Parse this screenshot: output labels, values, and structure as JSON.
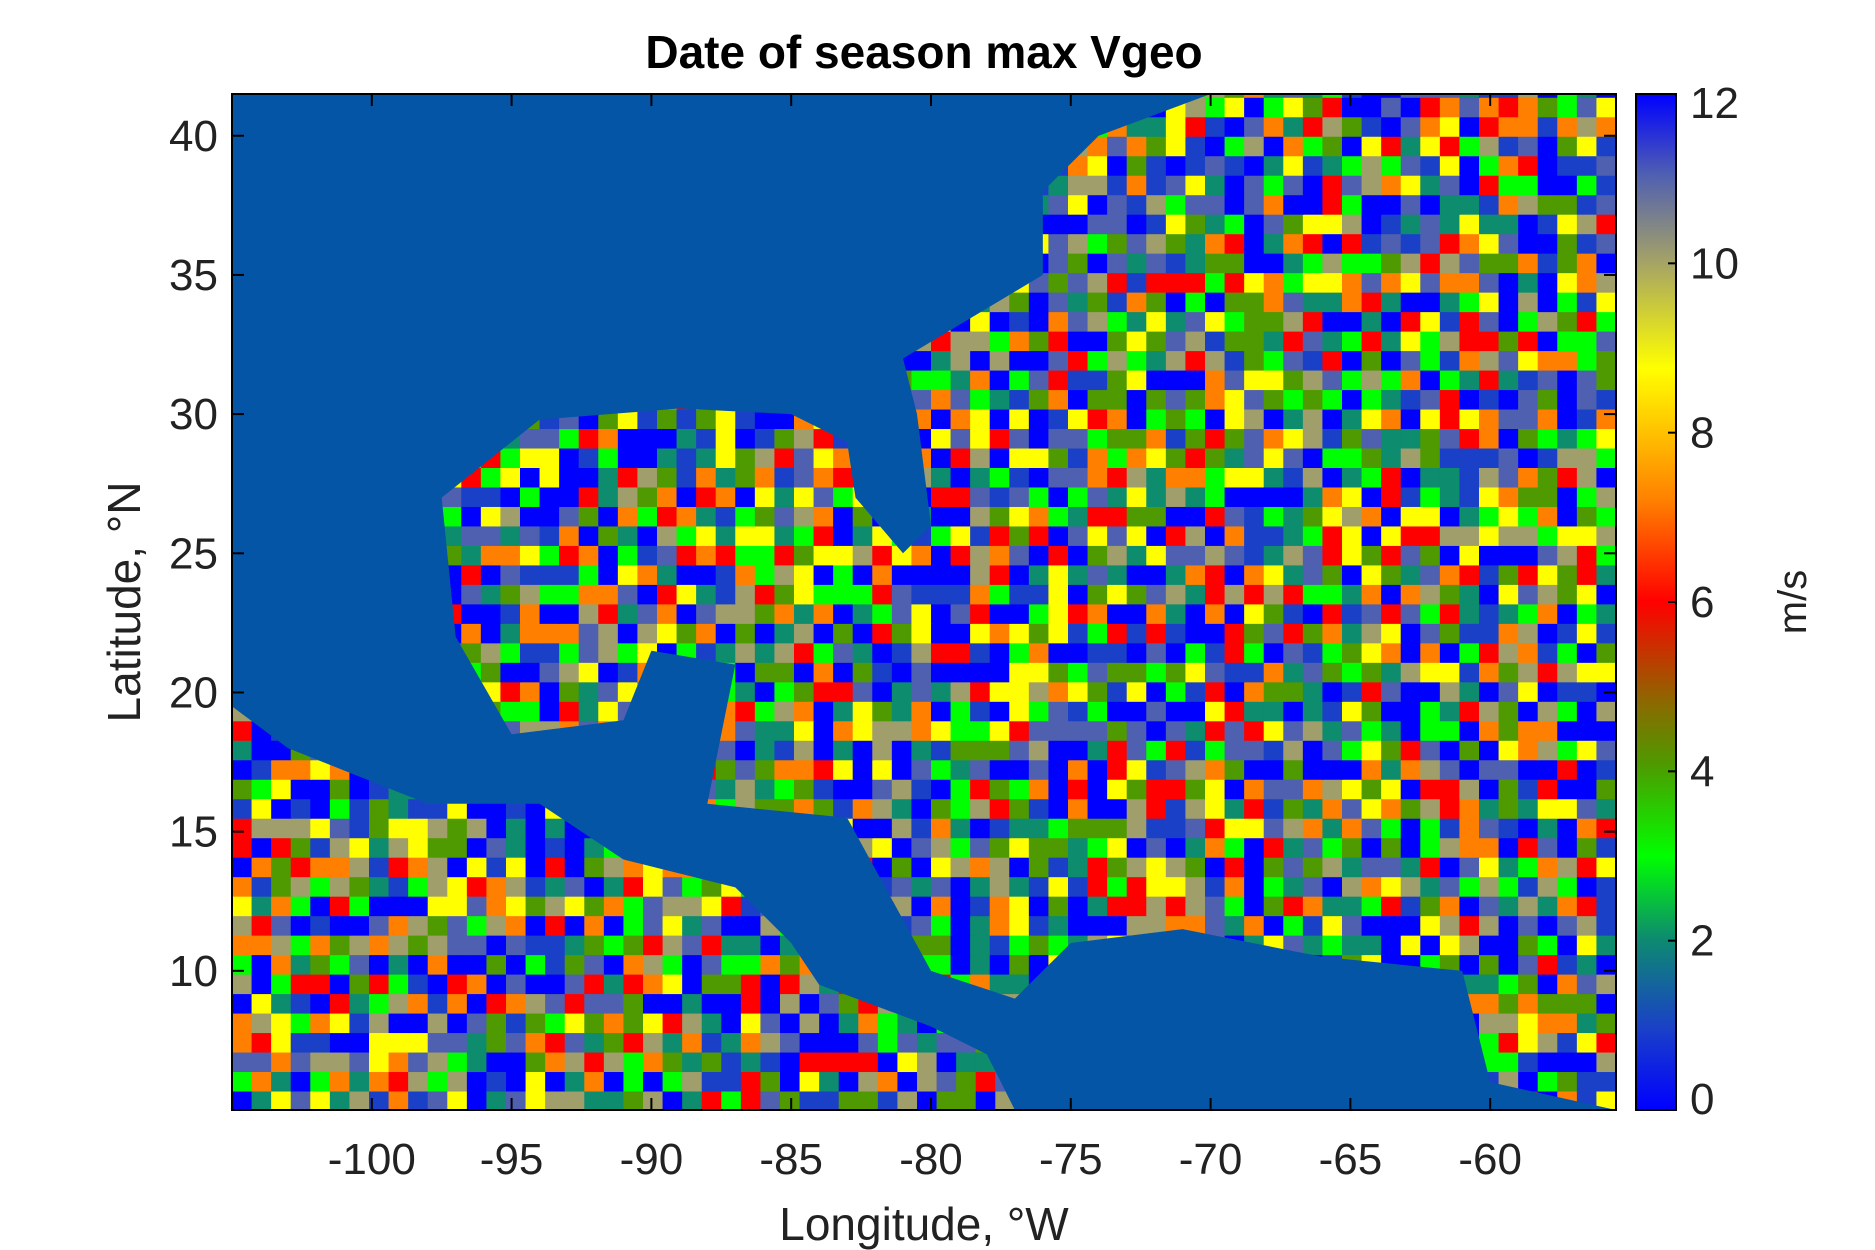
{
  "chart_data": {
    "type": "heatmap",
    "title": "Date of season max Vgeo",
    "xlabel": "Longitude, °W",
    "ylabel": "Latitude, °N",
    "xlim": [
      -105,
      -55.5
    ],
    "ylim": [
      5,
      41.5
    ],
    "xticks": [
      -100,
      -95,
      -90,
      -85,
      -80,
      -75,
      -70,
      -65,
      -60
    ],
    "yticks": [
      10,
      15,
      20,
      25,
      30,
      35,
      40
    ],
    "grid": false,
    "land_color": "#0455A6",
    "colorbar": {
      "label": "m/s",
      "range": [
        0,
        12
      ],
      "ticks": [
        0,
        2,
        4,
        6,
        8,
        10,
        12
      ],
      "position": "right",
      "colors": [
        "#0000FF",
        "#1A40C8",
        "#0D8C6E",
        "#00FF00",
        "#4E9A00",
        "#FF0000",
        "#FF8000",
        "#FFFF00",
        "#A09E6B",
        "#5060B0",
        "#0000FF"
      ]
    }
  }
}
